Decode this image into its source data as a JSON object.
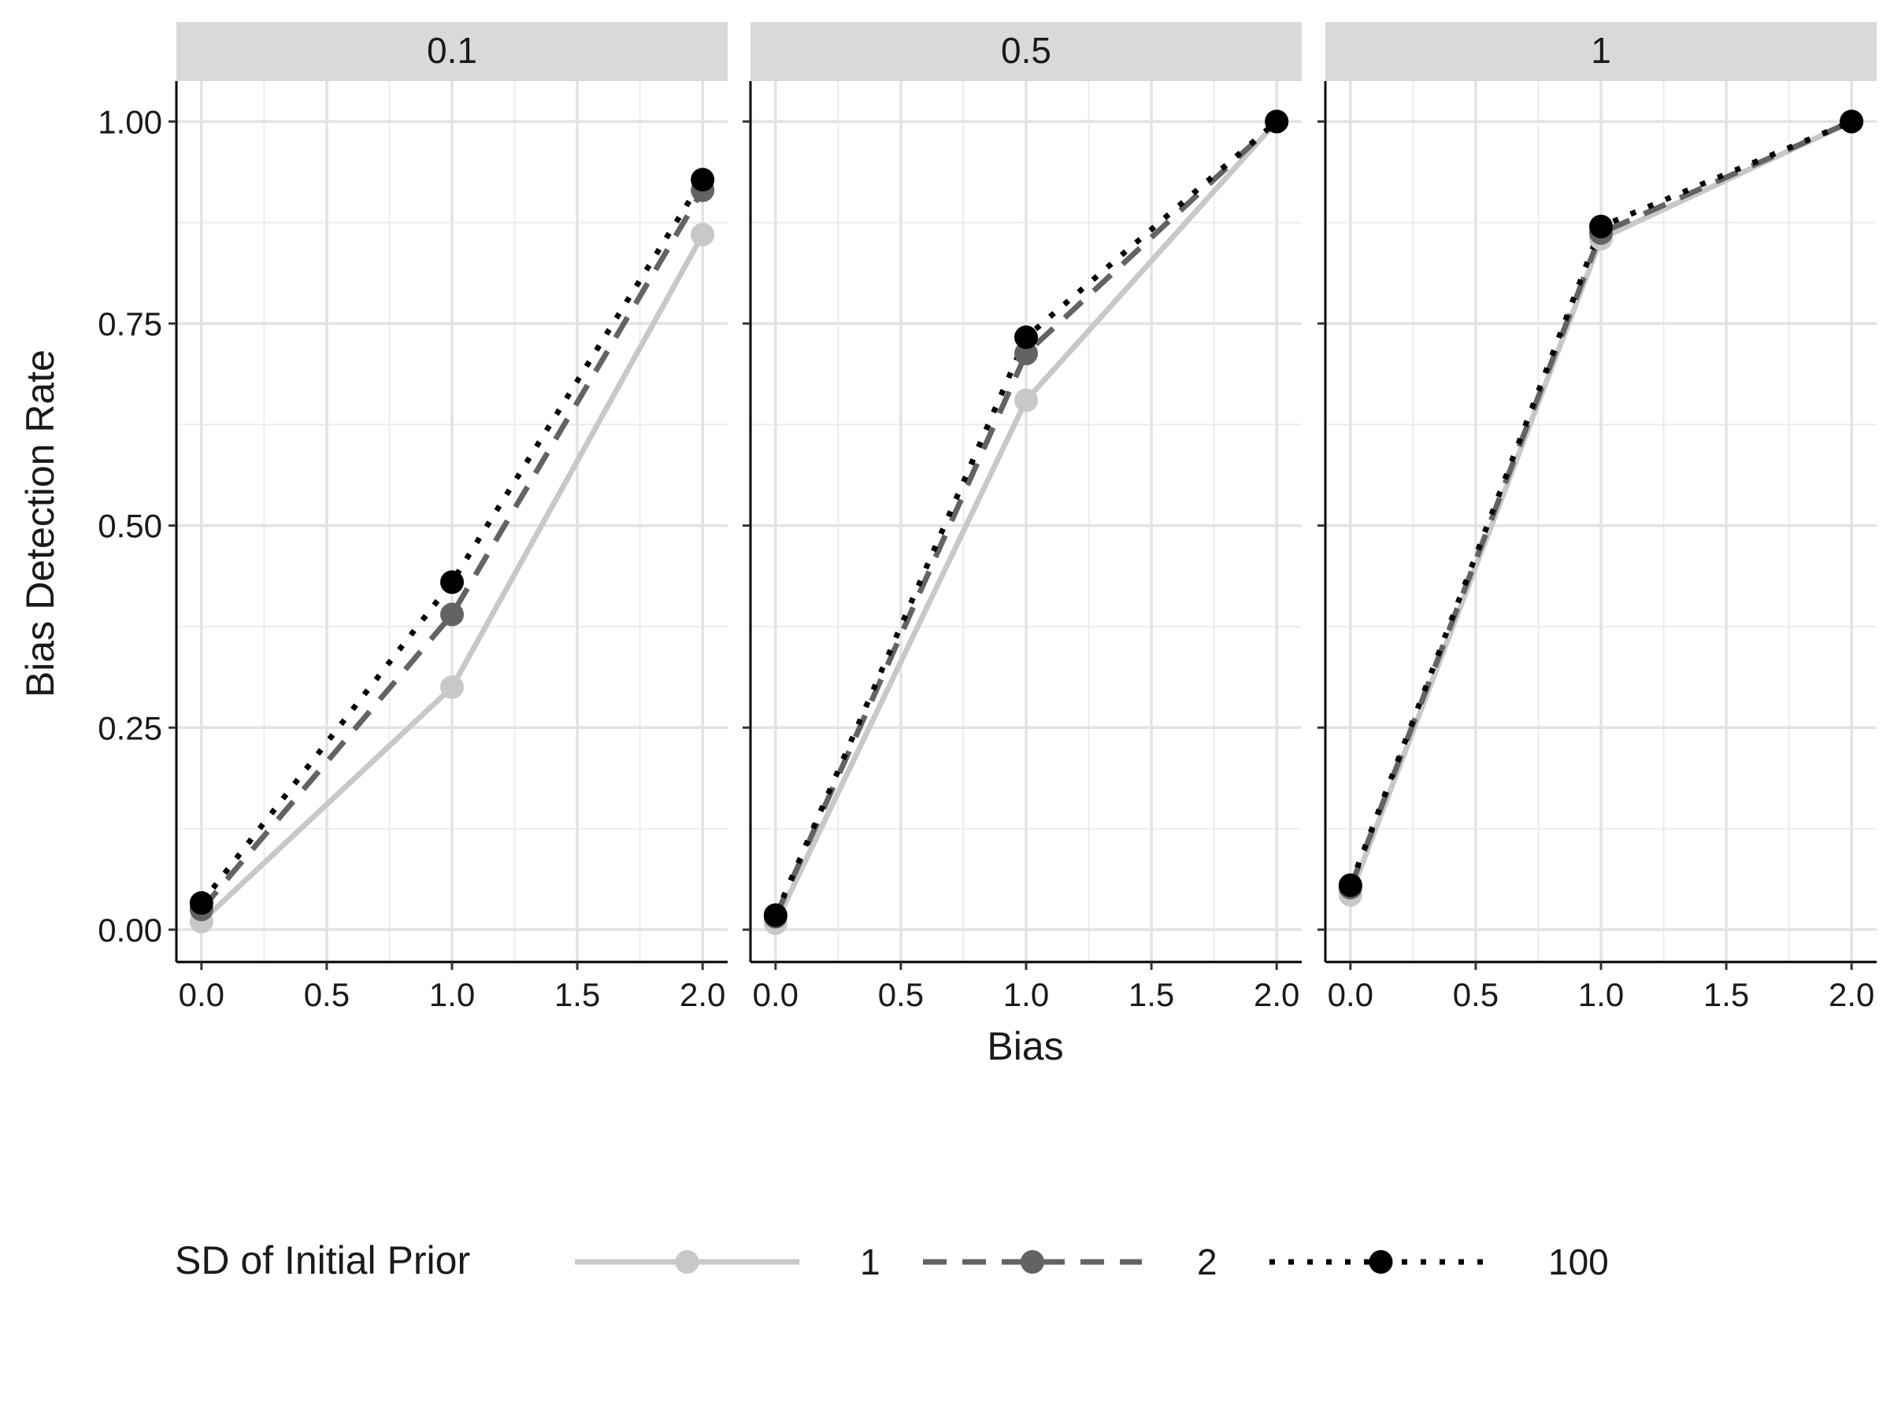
{
  "chart_data": {
    "type": "line",
    "xlabel": "Bias",
    "ylabel": "Bias Detection Rate",
    "xlim": [
      -0.1,
      2.1
    ],
    "ylim": [
      -0.04,
      1.05
    ],
    "x_ticks": [
      0.0,
      0.5,
      1.0,
      1.5,
      2.0
    ],
    "x_tick_labels": [
      "0.0",
      "0.5",
      "1.0",
      "1.5",
      "2.0"
    ],
    "y_ticks": [
      0.0,
      0.25,
      0.5,
      0.75,
      1.0
    ],
    "y_tick_labels": [
      "0.00",
      "0.25",
      "0.50",
      "0.75",
      "1.00"
    ],
    "grid": true,
    "legend": {
      "title": "SD of Initial Prior",
      "position": "bottom",
      "entries": [
        "1",
        "2",
        "100"
      ]
    },
    "series_styles": [
      {
        "name": "1",
        "color": "#c8c8c8",
        "dash": "solid"
      },
      {
        "name": "2",
        "color": "#636363",
        "dash": "dashed"
      },
      {
        "name": "100",
        "color": "#000000",
        "dash": "dotted"
      }
    ],
    "panels": [
      {
        "label": "0.1",
        "x": [
          0,
          1,
          2
        ],
        "series": [
          {
            "name": "1",
            "values": [
              0.01,
              0.3,
              0.86
            ]
          },
          {
            "name": "2",
            "values": [
              0.025,
              0.39,
              0.915
            ]
          },
          {
            "name": "100",
            "values": [
              0.033,
              0.43,
              0.928
            ]
          }
        ]
      },
      {
        "label": "0.5",
        "x": [
          0,
          1,
          2
        ],
        "series": [
          {
            "name": "1",
            "values": [
              0.008,
              0.655,
              1.0
            ]
          },
          {
            "name": "2",
            "values": [
              0.016,
              0.713,
              1.0
            ]
          },
          {
            "name": "100",
            "values": [
              0.018,
              0.733,
              1.0
            ]
          }
        ]
      },
      {
        "label": "1",
        "x": [
          0,
          1,
          2
        ],
        "series": [
          {
            "name": "1",
            "values": [
              0.043,
              0.855,
              1.0
            ]
          },
          {
            "name": "2",
            "values": [
              0.052,
              0.862,
              1.0
            ]
          },
          {
            "name": "100",
            "values": [
              0.055,
              0.87,
              1.0
            ]
          }
        ]
      }
    ]
  }
}
